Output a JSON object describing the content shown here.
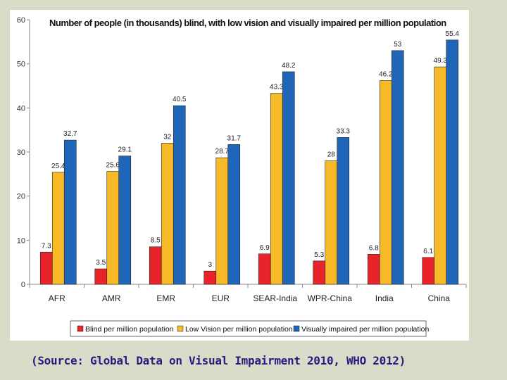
{
  "chart_data": {
    "type": "bar",
    "title": "Number of people (in thousands) blind, with low vision and visually impaired per million population",
    "categories": [
      "AFR",
      "AMR",
      "EMR",
      "EUR",
      "SEAR-India",
      "WPR-China",
      "India",
      "China"
    ],
    "series": [
      {
        "name": "Blind per million population",
        "color": "#e8242a",
        "values": [
          7.3,
          3.5,
          8.5,
          3,
          6.9,
          5.3,
          6.8,
          6.1
        ],
        "labels": [
          "7.3",
          "3.5",
          "8.5",
          "3",
          "6.9",
          "5.3",
          "6.8",
          "6.1"
        ]
      },
      {
        "name": "Low Vision per million population",
        "color": "#f6b928",
        "values": [
          25.4,
          25.6,
          32,
          28.7,
          43.3,
          28,
          46.2,
          49.3
        ],
        "labels": [
          "25.4",
          "25.6",
          "32",
          "28.7",
          "43.3",
          "28",
          "46.2",
          "49.3"
        ]
      },
      {
        "name": "Visually impaired per million population",
        "color": "#1f66b8",
        "values": [
          32.7,
          29.1,
          40.5,
          31.7,
          48.2,
          33.3,
          53,
          55.4
        ],
        "labels": [
          "32.7",
          "29.1",
          "40.5",
          "31.7",
          "48.2",
          "33.3",
          "53",
          "55.4"
        ]
      }
    ],
    "ylim": [
      0,
      60
    ],
    "yticks": [
      "0",
      "10",
      "20",
      "30",
      "40",
      "50",
      "60"
    ],
    "xlabel": "",
    "ylabel": "",
    "legend_position": "bottom",
    "grid": false
  },
  "source_note": "(Source: Global Data on Visual Impairment 2010, WHO 2012)"
}
